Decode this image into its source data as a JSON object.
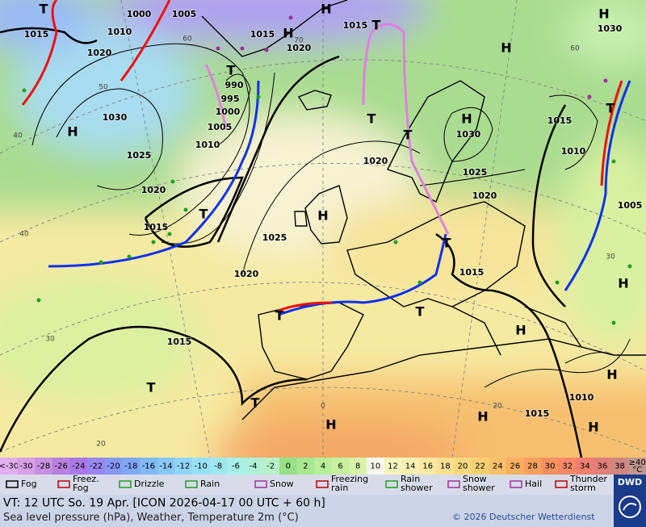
{
  "map": {
    "isobar_labels": [
      1000,
      1005,
      1015,
      1010,
      1020,
      1015,
      1020,
      1015,
      1030,
      990,
      995,
      1000,
      1005,
      1010,
      1030,
      1025,
      1020,
      1015,
      1025,
      1020,
      1020,
      1030,
      1025,
      1020,
      1015,
      1010,
      1005,
      1015,
      1015,
      1010,
      1015
    ],
    "highs": [
      "H",
      "H",
      "H",
      "H",
      "H",
      "H",
      "H",
      "H",
      "H",
      "H",
      "H",
      "H",
      "H"
    ],
    "lows": [
      "T",
      "T",
      "T",
      "T",
      "T",
      "T",
      "T",
      "T",
      "T",
      "T",
      "T",
      "T"
    ],
    "grid_labels": [
      60,
      50,
      40,
      40,
      30,
      20,
      70,
      60,
      30,
      20,
      0
    ]
  },
  "scale": {
    "first": "<-30",
    "values": [
      -30,
      -28,
      -26,
      -24,
      -22,
      -20,
      -18,
      -16,
      -14,
      -12,
      -10,
      -8,
      -6,
      -4,
      -2,
      0,
      2,
      4,
      6,
      8,
      10,
      12,
      14,
      16,
      18,
      20,
      22,
      24,
      26,
      28,
      30,
      32,
      34,
      36,
      38
    ],
    "last": "≥40",
    "unit": "°C",
    "colors": [
      "#d8a0e8",
      "#c890e0",
      "#b880e0",
      "#a878e8",
      "#9888f0",
      "#8898f8",
      "#80a8f8",
      "#80b8f8",
      "#88c8f8",
      "#90d4f8",
      "#98e0f8",
      "#a0e8f0",
      "#a8f0e8",
      "#b0f0d8",
      "#b8f0c8",
      "#98e088",
      "#a8e890",
      "#b8f098",
      "#c8f0a0",
      "#d8f4a8",
      "#f8f8f0",
      "#f8f4c0",
      "#f8f0b0",
      "#f8e8a0",
      "#f8e090",
      "#f8d880",
      "#f8d070",
      "#f8c068",
      "#f8b060",
      "#f8a060",
      "#f89060",
      "#f88868",
      "#f08070",
      "#e08078",
      "#d08880"
    ],
    "first_color": "#e0b0f0",
    "last_color": "#c09890"
  },
  "legend": [
    [
      "Fog"
    ],
    [
      "Freez.",
      "Fog"
    ],
    [
      "Drizzle"
    ],
    [
      "Rain"
    ],
    [
      "Snow"
    ],
    [
      "Freezing",
      "rain"
    ],
    [
      "Rain",
      "shower"
    ],
    [
      "Snow",
      "shower"
    ],
    [
      "Hail"
    ],
    [
      "Thunder",
      "storm"
    ]
  ],
  "footer": {
    "line1": "VT: 12 UTC So.  19 Apr. [ICON 2026-04-17  00 UTC + 60 h]",
    "line2": "Sea level pressure (hPa), Weather, Temperature 2m (°C)",
    "copyright": "© 2026 Deutscher Wetterdienst",
    "logo": "DWD"
  }
}
